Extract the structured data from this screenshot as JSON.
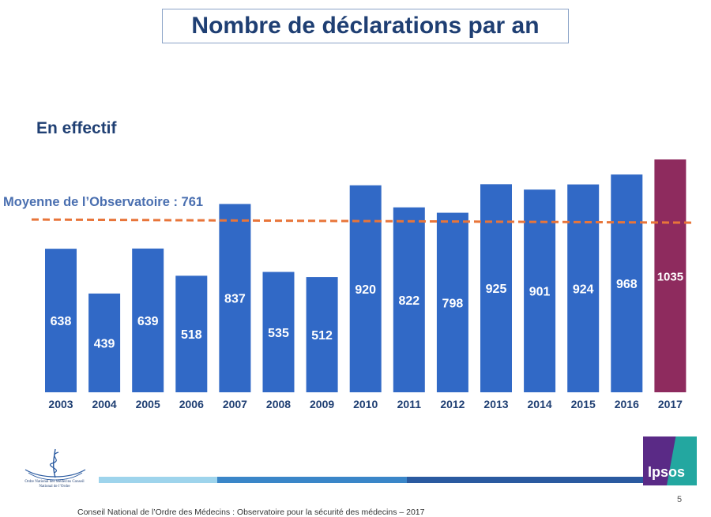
{
  "title": "Nombre de déclarations par an",
  "subtitle": "En effectif",
  "average_label": "Moyenne de l’Observatoire : 761",
  "page_number": "5",
  "footer_text": "Conseil National de l’Ordre des Médecins : Observatoire pour la sécurité des médecins – 2017",
  "logo_left_text": "Ordre National des Médecins Conseil National de l’Ordre",
  "logo_right_text": "Ipsos",
  "colors": {
    "bar": "#3169c6",
    "bar_highlight": "#8e2b5e",
    "average_line": "#e8753a",
    "title": "#1f3f73"
  },
  "chart_data": {
    "type": "bar",
    "categories": [
      "2003",
      "2004",
      "2005",
      "2006",
      "2007",
      "2008",
      "2009",
      "2010",
      "2011",
      "2012",
      "2013",
      "2014",
      "2015",
      "2016",
      "2017"
    ],
    "values": [
      638,
      439,
      639,
      518,
      837,
      535,
      512,
      920,
      822,
      798,
      925,
      901,
      924,
      968,
      1035
    ],
    "highlight_index": 14,
    "average": 761,
    "ylim": [
      0,
      1035
    ]
  }
}
